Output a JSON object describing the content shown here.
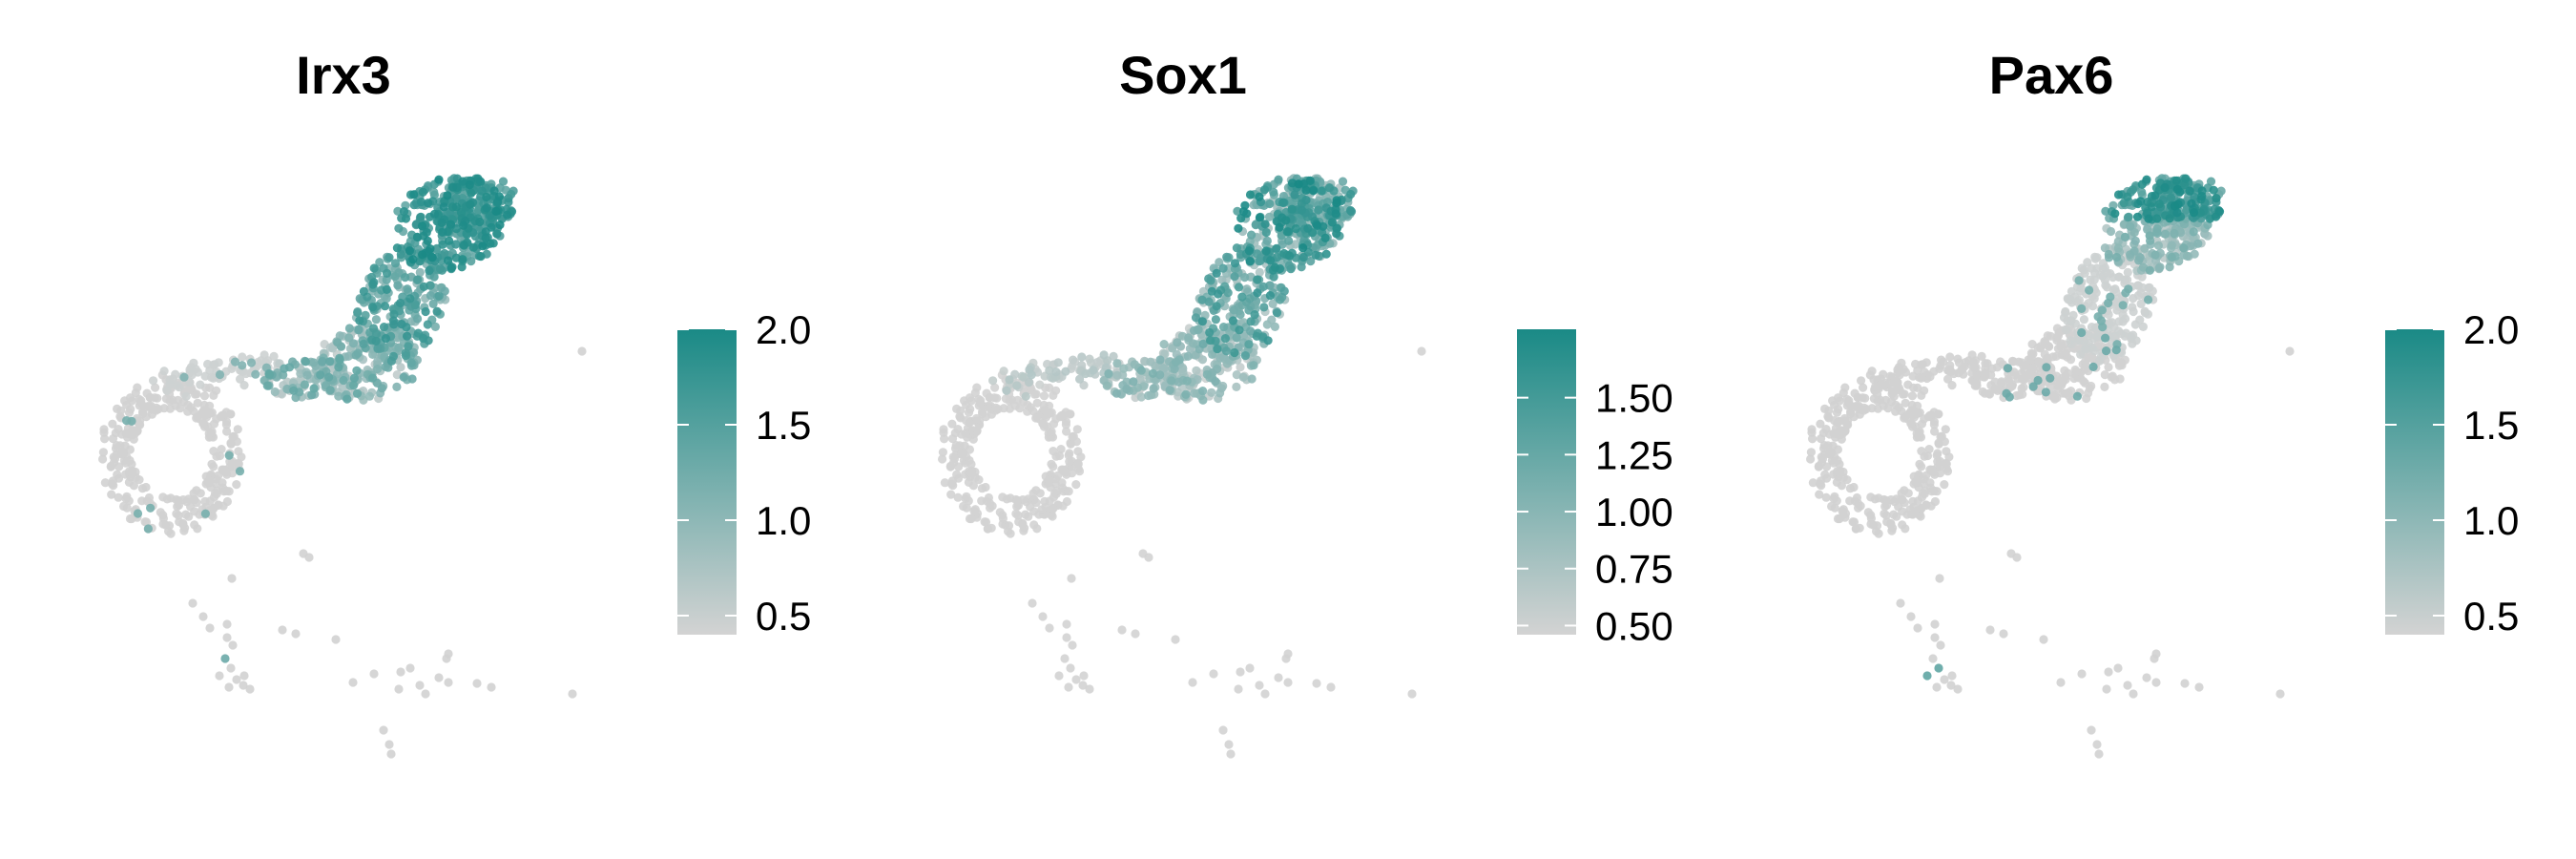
{
  "chart_data": [
    {
      "type": "scatter",
      "title": "Irx3",
      "colorbar": {
        "ticks": [
          "0.5",
          "1.0",
          "1.5",
          "2.0"
        ],
        "min": 0.4,
        "max": 2.0,
        "low_color": "#d3d3d3",
        "high_color": "#1a8a86"
      },
      "pattern": "top_cluster"
    },
    {
      "type": "scatter",
      "title": "Sox1",
      "colorbar": {
        "ticks": [
          "0.50",
          "0.75",
          "1.00",
          "1.25",
          "1.50"
        ],
        "min": 0.46,
        "max": 1.8,
        "low_color": "#d3d3d3",
        "high_color": "#1a8a86"
      },
      "pattern": "top_sparse"
    },
    {
      "type": "scatter",
      "title": "Pax6",
      "colorbar": {
        "ticks": [
          "0.5",
          "1.0",
          "1.5",
          "2.0"
        ],
        "min": 0.4,
        "max": 2.0,
        "low_color": "#d3d3d3",
        "high_color": "#1a8a86"
      },
      "pattern": "top_tip"
    }
  ]
}
